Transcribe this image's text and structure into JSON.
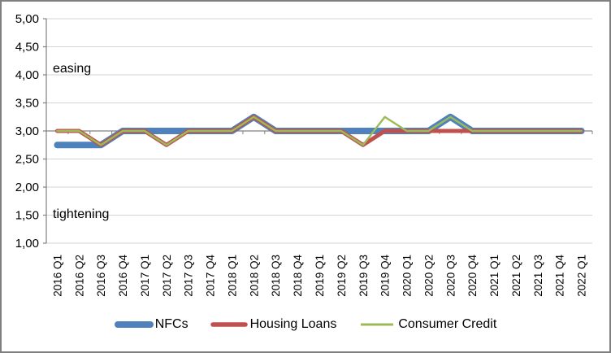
{
  "chart_data": {
    "type": "line",
    "title": "",
    "categories": [
      "2016 Q1",
      "2016 Q2",
      "2016 Q3",
      "2016 Q4",
      "2017 Q1",
      "2017 Q2",
      "2017 Q3",
      "2017 Q4",
      "2018 Q1",
      "2018 Q2",
      "2018 Q3",
      "2018 Q4",
      "2019 Q1",
      "2019 Q2",
      "2019 Q3",
      "2019 Q4",
      "2020 Q1",
      "2020 Q2",
      "2020 Q3",
      "2020 Q4",
      "2021 Q1",
      "2021 Q2",
      "2021 Q3",
      "2021 Q4",
      "2022 Q1"
    ],
    "y_axis": {
      "min": 1.0,
      "max": 5.0,
      "step": 0.5,
      "tick_labels": [
        "5,00",
        "4,50",
        "4,00",
        "3,50",
        "3,00",
        "2,50",
        "2,00",
        "1,50",
        "1,00"
      ]
    },
    "category_axis_crosses_at": 3.0,
    "grid": true,
    "legend_position": "bottom",
    "annotations": [
      {
        "text": "easing",
        "value": 4.0
      },
      {
        "text": "tightening",
        "value": 1.5
      }
    ],
    "series": [
      {
        "name": "NFCs",
        "color": "#4F81BD",
        "stroke_width": 8,
        "values": [
          2.75,
          2.75,
          2.75,
          3.0,
          3.0,
          3.0,
          3.0,
          3.0,
          3.0,
          3.25,
          3.0,
          3.0,
          3.0,
          3.0,
          3.0,
          3.0,
          3.0,
          3.0,
          3.25,
          3.0,
          3.0,
          3.0,
          3.0,
          3.0,
          3.0
        ]
      },
      {
        "name": "Housing Loans",
        "color": "#C0504D",
        "stroke_width": 5,
        "values": [
          3.0,
          3.0,
          2.75,
          3.0,
          3.0,
          2.75,
          3.0,
          3.0,
          3.0,
          3.25,
          3.0,
          3.0,
          3.0,
          3.0,
          2.75,
          3.0,
          3.0,
          3.0,
          3.0,
          3.0,
          3.0,
          3.0,
          3.0,
          3.0,
          3.0
        ]
      },
      {
        "name": "Consumer Credit",
        "color": "#9BBB59",
        "stroke_width": 2.5,
        "values": [
          3.0,
          3.0,
          2.75,
          3.0,
          3.0,
          2.75,
          3.0,
          3.0,
          3.0,
          3.25,
          3.0,
          3.0,
          3.0,
          3.0,
          2.75,
          3.25,
          3.0,
          3.0,
          3.25,
          3.0,
          3.0,
          3.0,
          3.0,
          3.0,
          3.0
        ]
      }
    ],
    "colors": {
      "grid": "#D3D3D3",
      "axis": "#808080",
      "frame_border": "#7F7F7F",
      "background": "#FFFFFF"
    }
  }
}
